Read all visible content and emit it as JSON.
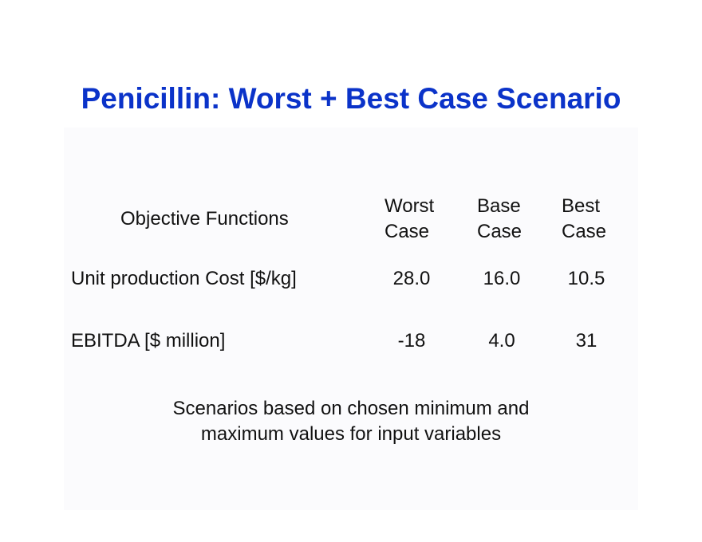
{
  "title": "Penicillin: Worst + Best Case Scenario",
  "table": {
    "row_header": "Objective Functions",
    "columns": [
      {
        "line1": "Worst",
        "line2": "Case"
      },
      {
        "line1": "Base",
        "line2": "Case"
      },
      {
        "line1": "Best",
        "line2": "Case"
      }
    ],
    "rows": [
      {
        "label": "Unit production Cost [$/kg]",
        "values": [
          "28.0",
          "16.0",
          "10.5"
        ]
      },
      {
        "label": "EBITDA [$ million]",
        "values": [
          "-18",
          "4.0",
          "31"
        ]
      }
    ]
  },
  "note": {
    "line1": "Scenarios based on chosen minimum and",
    "line2": "maximum values for input variables"
  },
  "colors": {
    "title": "#0b33c9",
    "base_case": "#a00d0d",
    "text": "#111111"
  }
}
